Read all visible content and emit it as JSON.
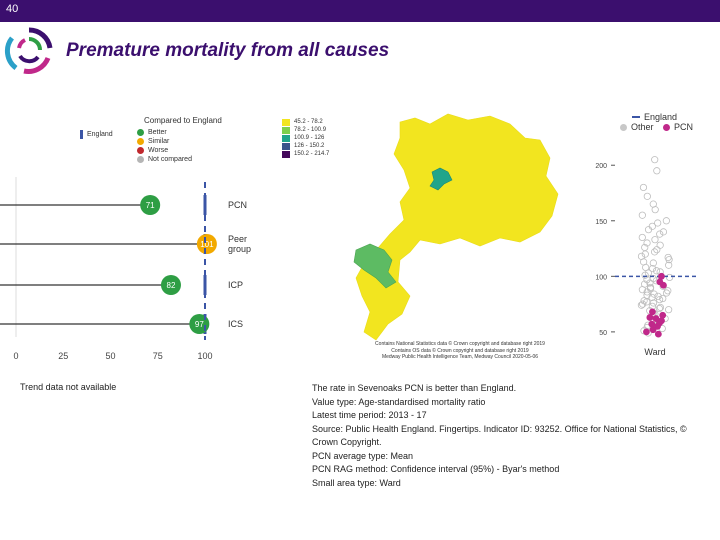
{
  "slide": {
    "number": "40",
    "title": "Premature mortality from all causes"
  },
  "colors": {
    "brand": "#3b0f6e",
    "england": "#3b55a6",
    "better": "#2e9e44",
    "similar": "#f2a900",
    "worse": "#c0282d",
    "not_compared": "#b5b5b5",
    "pcn": "#c0288a"
  },
  "chart_data": [
    {
      "type": "dot",
      "legend": {
        "title": "Compared to England",
        "england_label": "England",
        "items": [
          "Better",
          "Similar",
          "Worse",
          "Not compared"
        ]
      },
      "categories": [
        "PCN",
        "Peer group",
        "ICP",
        "ICS"
      ],
      "category_labels": [
        "PCN",
        "Peer\ngroup",
        "ICP",
        "ICS"
      ],
      "values": [
        71,
        101,
        82,
        97
      ],
      "value_labels": [
        "71",
        "101",
        "82",
        "97"
      ],
      "status": [
        "Better",
        "Similar",
        "Better",
        "Better"
      ],
      "england_value": 100,
      "xticks": [
        "0",
        "25",
        "50",
        "75",
        "100"
      ],
      "xlim": [
        0,
        100
      ]
    },
    {
      "type": "map",
      "legend": [
        "45.2 - 78.2",
        "78.2 - 100.9",
        "100.9 - 126",
        "126 - 150.2",
        "150.2 - 214.7"
      ],
      "legend_colors": [
        "#f2e51f",
        "#7ed04b",
        "#21a58a",
        "#3a538b",
        "#44085b"
      ],
      "credits": [
        "Contains National Statistics data © Crown copyright and database right 2019",
        "Contains OS data © Crown copyright and database right 2019",
        "Medway Public Health Intelligence Team, Medway Council 2020-05-06"
      ]
    },
    {
      "type": "scatter",
      "xlabel": "Ward",
      "legend": {
        "england": "England",
        "other": "Other",
        "pcn": "PCN"
      },
      "yticks": [
        "50",
        "100",
        "150",
        "200"
      ],
      "ylim": [
        40,
        220
      ],
      "england_value": 100,
      "pcn_values": [
        95,
        100,
        92,
        65,
        60,
        58,
        55,
        62,
        50,
        57,
        68,
        63,
        52,
        48
      ],
      "other_values": [
        205,
        195,
        180,
        172,
        165,
        160,
        155,
        150,
        148,
        145,
        142,
        140,
        138,
        135,
        133,
        130,
        128,
        126,
        124,
        122,
        120,
        118,
        117,
        115,
        113,
        112,
        110,
        108,
        107,
        105,
        104,
        103,
        101,
        99,
        98,
        97,
        96,
        94,
        93,
        91,
        90,
        89,
        88,
        87,
        86,
        85,
        84,
        83,
        82,
        81,
        80,
        79,
        78,
        77,
        76,
        75,
        74,
        73,
        72,
        71,
        70,
        69,
        67,
        66,
        64,
        62,
        61,
        59,
        56,
        54,
        53,
        51,
        49
      ]
    }
  ],
  "trend_note": "Trend data not available",
  "info_lines": [
    "The rate in Sevenoaks PCN is better than England.",
    "Value type: Age-standardised mortality ratio",
    "Latest time period: 2013 - 17",
    "Source: Public Health England. Fingertips. Indicator ID: 93252. Office for National Statistics, © Crown Copyright.",
    "PCN average type: Mean",
    "PCN RAG method: Confidence interval (95%) - Byar's method",
    "Small area type: Ward"
  ]
}
